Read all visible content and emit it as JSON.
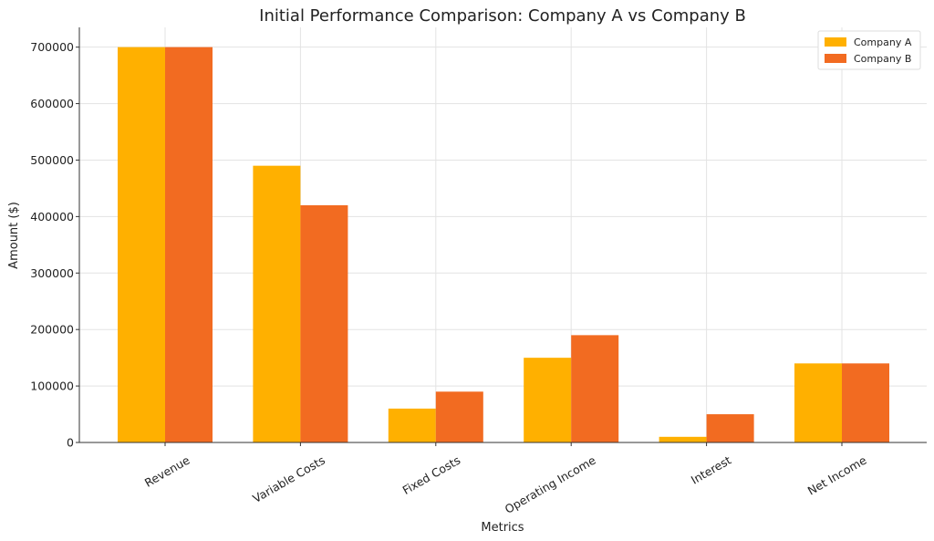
{
  "chart_data": {
    "type": "bar",
    "title": "Initial Performance Comparison: Company A vs Company B",
    "xlabel": "Metrics",
    "ylabel": "Amount ($)",
    "categories": [
      "Revenue",
      "Variable Costs",
      "Fixed Costs",
      "Operating Income",
      "Interest",
      "Net Income"
    ],
    "series": [
      {
        "name": "Company A",
        "color": "#FFB000",
        "values": [
          700000,
          490000,
          60000,
          150000,
          10000,
          140000
        ]
      },
      {
        "name": "Company B",
        "color": "#F26B21",
        "values": [
          700000,
          420000,
          90000,
          190000,
          50000,
          140000
        ]
      }
    ],
    "ylim": [
      0,
      735000
    ],
    "yticks": [
      0,
      100000,
      200000,
      300000,
      400000,
      500000,
      600000,
      700000
    ],
    "grid": true,
    "legend_position": "top-right"
  }
}
